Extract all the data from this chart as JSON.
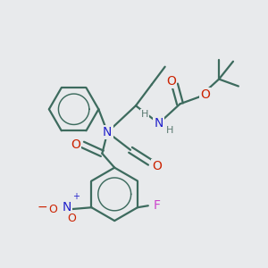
{
  "background_color": "#e8eaec",
  "atom_colors": {
    "C": "#3d6b5e",
    "N": "#2222cc",
    "O": "#cc2200",
    "F": "#cc44cc",
    "H": "#5a7a70"
  },
  "bond_color": "#3d6b5e",
  "bond_width": 1.6,
  "figsize": [
    3.0,
    3.0
  ],
  "dpi": 100
}
